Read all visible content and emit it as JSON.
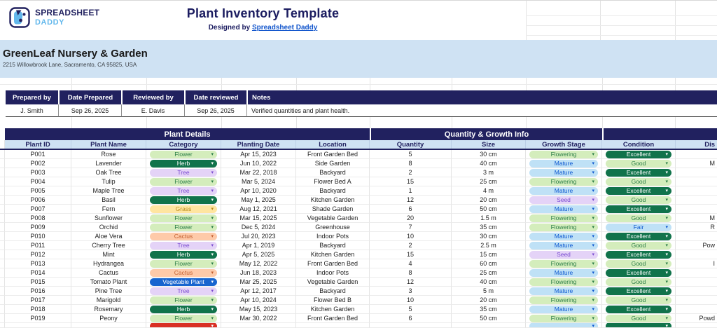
{
  "brand": {
    "top": "SPREADSHEET",
    "bottom": "DADDY"
  },
  "header": {
    "title": "Plant Inventory Template",
    "designed_by_prefix": "Designed by",
    "designed_by_link": "Spreadsheet Daddy"
  },
  "company": {
    "name": "GreenLeaf Nursery & Garden",
    "address": "2215 Willowbrook Lane, Sacramento, CA 95825, USA"
  },
  "prepared": {
    "headers": [
      "Prepared by",
      "Date Prepared",
      "Reviewed by",
      "Date reviewed",
      "Notes"
    ],
    "values": [
      "J. Smith",
      "Sep 26, 2025",
      "E. Davis",
      "Sep 26, 2025",
      "Verified quantities and plant health."
    ]
  },
  "icons": {
    "chevron_down": "▾"
  },
  "colors": {
    "navy": "#21215f",
    "band_blue": "#cfe2f3",
    "link_blue": "#1155cc",
    "brand_light_blue": "#63b8ec"
  },
  "chip_styles": {
    "green_light": {
      "bg": "#d4edbc",
      "fg": "#2a7d46"
    },
    "green_dark": {
      "bg": "#11734b",
      "fg": "#ffffff"
    },
    "purple_light": {
      "bg": "#e4d3f7",
      "fg": "#7a4bd0"
    },
    "yellow_light": {
      "bg": "#ffe5a0",
      "fg": "#b98c1f"
    },
    "orange_light": {
      "bg": "#fecaa9",
      "fg": "#c25e2e"
    },
    "blue_light": {
      "bg": "#bfe1f6",
      "fg": "#0b57d0"
    },
    "blue_solid": {
      "bg": "#1765cf",
      "fg": "#ffffff"
    },
    "red_solid": {
      "bg": "#d93025",
      "fg": "#ffffff"
    }
  },
  "table": {
    "groups": [
      {
        "label": "Plant Details"
      },
      {
        "label": "Quantity & Growth Info"
      },
      {
        "label": ""
      }
    ],
    "columns": [
      "Plant ID",
      "Plant Name",
      "Category",
      "Planting Date",
      "Location",
      "Quantity",
      "Size",
      "Growth Stage",
      "Condition",
      "Dis"
    ],
    "rows": [
      {
        "id": "P001",
        "name": "Rose",
        "category": "Flower",
        "category_style": "green_light",
        "date": "Apr 15, 2023",
        "location": "Front Garden Bed",
        "qty": "5",
        "size": "30 cm",
        "stage": "Flowering",
        "stage_style": "green_light",
        "condition": "Excellent",
        "condition_style": "green_dark",
        "dis": ""
      },
      {
        "id": "P002",
        "name": "Lavender",
        "category": "Herb",
        "category_style": "green_dark",
        "date": "Jun 10, 2022",
        "location": "Side Garden",
        "qty": "8",
        "size": "40 cm",
        "stage": "Mature",
        "stage_style": "blue_light",
        "condition": "Good",
        "condition_style": "green_light",
        "dis": "M"
      },
      {
        "id": "P003",
        "name": "Oak Tree",
        "category": "Tree",
        "category_style": "purple_light",
        "date": "Mar 22, 2018",
        "location": "Backyard",
        "qty": "2",
        "size": "3 m",
        "stage": "Mature",
        "stage_style": "blue_light",
        "condition": "Excellent",
        "condition_style": "green_dark",
        "dis": ""
      },
      {
        "id": "P004",
        "name": "Tulip",
        "category": "Flower",
        "category_style": "green_light",
        "date": "Mar 5, 2024",
        "location": "Flower Bed A",
        "qty": "15",
        "size": "25 cm",
        "stage": "Flowering",
        "stage_style": "green_light",
        "condition": "Good",
        "condition_style": "green_light",
        "dis": ""
      },
      {
        "id": "P005",
        "name": "Maple Tree",
        "category": "Tree",
        "category_style": "purple_light",
        "date": "Apr 10, 2020",
        "location": "Backyard",
        "qty": "1",
        "size": "4 m",
        "stage": "Mature",
        "stage_style": "blue_light",
        "condition": "Excellent",
        "condition_style": "green_dark",
        "dis": ""
      },
      {
        "id": "P006",
        "name": "Basil",
        "category": "Herb",
        "category_style": "green_dark",
        "date": "May 1, 2025",
        "location": "Kitchen Garden",
        "qty": "12",
        "size": "20 cm",
        "stage": "Seed",
        "stage_style": "purple_light",
        "condition": "Good",
        "condition_style": "green_light",
        "dis": ""
      },
      {
        "id": "P007",
        "name": "Fern",
        "category": "Grass",
        "category_style": "yellow_light",
        "date": "Aug 12, 2021",
        "location": "Shade Garden",
        "qty": "6",
        "size": "50 cm",
        "stage": "Mature",
        "stage_style": "blue_light",
        "condition": "Excellent",
        "condition_style": "green_dark",
        "dis": ""
      },
      {
        "id": "P008",
        "name": "Sunflower",
        "category": "Flower",
        "category_style": "green_light",
        "date": "Mar 15, 2025",
        "location": "Vegetable Garden",
        "qty": "20",
        "size": "1.5 m",
        "stage": "Flowering",
        "stage_style": "green_light",
        "condition": "Good",
        "condition_style": "green_light",
        "dis": "M"
      },
      {
        "id": "P009",
        "name": "Orchid",
        "category": "Flower",
        "category_style": "green_light",
        "date": "Dec 5, 2024",
        "location": "Greenhouse",
        "qty": "7",
        "size": "35 cm",
        "stage": "Flowering",
        "stage_style": "green_light",
        "condition": "Fair",
        "condition_style": "blue_light",
        "dis": "R"
      },
      {
        "id": "P010",
        "name": "Aloe Vera",
        "category": "Cactus",
        "category_style": "orange_light",
        "date": "Jul 20, 2023",
        "location": "Indoor Pots",
        "qty": "10",
        "size": "30 cm",
        "stage": "Mature",
        "stage_style": "blue_light",
        "condition": "Excellent",
        "condition_style": "green_dark",
        "dis": ""
      },
      {
        "id": "P011",
        "name": "Cherry Tree",
        "category": "Tree",
        "category_style": "purple_light",
        "date": "Apr 1, 2019",
        "location": "Backyard",
        "qty": "2",
        "size": "2.5 m",
        "stage": "Mature",
        "stage_style": "blue_light",
        "condition": "Good",
        "condition_style": "green_light",
        "dis": "Pow"
      },
      {
        "id": "P012",
        "name": "Mint",
        "category": "Herb",
        "category_style": "green_dark",
        "date": "Apr 5, 2025",
        "location": "Kitchen Garden",
        "qty": "15",
        "size": "15 cm",
        "stage": "Seed",
        "stage_style": "purple_light",
        "condition": "Excellent",
        "condition_style": "green_dark",
        "dis": ""
      },
      {
        "id": "P013",
        "name": "Hydrangea",
        "category": "Flower",
        "category_style": "green_light",
        "date": "May 12, 2022",
        "location": "Front Garden Bed",
        "qty": "4",
        "size": "60 cm",
        "stage": "Flowering",
        "stage_style": "green_light",
        "condition": "Good",
        "condition_style": "green_light",
        "dis": "I"
      },
      {
        "id": "P014",
        "name": "Cactus",
        "category": "Cactus",
        "category_style": "orange_light",
        "date": "Jun 18, 2023",
        "location": "Indoor Pots",
        "qty": "8",
        "size": "25 cm",
        "stage": "Mature",
        "stage_style": "blue_light",
        "condition": "Excellent",
        "condition_style": "green_dark",
        "dis": ""
      },
      {
        "id": "P015",
        "name": "Tomato Plant",
        "category": "Vegetable Plant",
        "category_style": "blue_solid",
        "date": "Mar 25, 2025",
        "location": "Vegetable Garden",
        "qty": "12",
        "size": "40 cm",
        "stage": "Flowering",
        "stage_style": "green_light",
        "condition": "Good",
        "condition_style": "green_light",
        "dis": ""
      },
      {
        "id": "P016",
        "name": "Pine Tree",
        "category": "Tree",
        "category_style": "purple_light",
        "date": "Apr 12, 2017",
        "location": "Backyard",
        "qty": "3",
        "size": "5 m",
        "stage": "Mature",
        "stage_style": "blue_light",
        "condition": "Excellent",
        "condition_style": "green_dark",
        "dis": ""
      },
      {
        "id": "P017",
        "name": "Marigold",
        "category": "Flower",
        "category_style": "green_light",
        "date": "Apr 10, 2024",
        "location": "Flower Bed B",
        "qty": "10",
        "size": "20 cm",
        "stage": "Flowering",
        "stage_style": "green_light",
        "condition": "Good",
        "condition_style": "green_light",
        "dis": ""
      },
      {
        "id": "P018",
        "name": "Rosemary",
        "category": "Herb",
        "category_style": "green_dark",
        "date": "May 15, 2023",
        "location": "Kitchen Garden",
        "qty": "5",
        "size": "35 cm",
        "stage": "Mature",
        "stage_style": "blue_light",
        "condition": "Excellent",
        "condition_style": "green_dark",
        "dis": ""
      },
      {
        "id": "P019",
        "name": "Peony",
        "category": "Flower",
        "category_style": "green_light",
        "date": "Mar 30, 2022",
        "location": "Front Garden Bed",
        "qty": "6",
        "size": "50 cm",
        "stage": "Flowering",
        "stage_style": "green_light",
        "condition": "Good",
        "condition_style": "green_light",
        "dis": "Powd"
      }
    ],
    "partial_row": {
      "category_style": "red_solid",
      "stage_style": "blue_light",
      "condition_style": "green_dark"
    }
  }
}
